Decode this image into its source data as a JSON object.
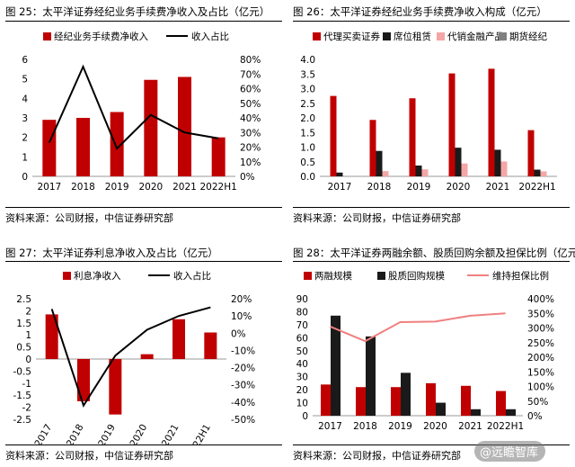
{
  "panels": [
    {
      "title": "图 25：太平洋证券经纪业务手续费净收入及占比（亿元）",
      "source": "资料来源：公司财报，中信证券研究部",
      "chart_data": {
        "type": "bar",
        "categories": [
          "2017",
          "2018",
          "2019",
          "2020",
          "2021",
          "2022H1"
        ],
        "series": [
          {
            "name": "经纪业务手续费净收入",
            "kind": "bar",
            "axis": "left",
            "values": [
              2.9,
              3.0,
              3.3,
              4.95,
              5.1,
              2.0
            ]
          },
          {
            "name": "收入占比",
            "kind": "line",
            "axis": "right",
            "values": [
              23,
              75,
              19,
              42,
              30,
              26
            ]
          }
        ],
        "ylim": [
          0,
          6
        ],
        "yticks": [
          "0",
          "1",
          "2",
          "3",
          "4",
          "5",
          "6"
        ],
        "y2lim": [
          0,
          80
        ],
        "y2ticks": [
          "0%",
          "10%",
          "20%",
          "30%",
          "40%",
          "50%",
          "60%",
          "70%",
          "80%"
        ]
      }
    },
    {
      "title": "图 26：太平洋证券经纪业务手续费净收入构成（亿元）",
      "source": "资料来源：公司财报，中信证券研究部",
      "chart_data": {
        "type": "bar",
        "categories": [
          "2017",
          "2018",
          "2019",
          "2020",
          "2021",
          "2022H1"
        ],
        "series": [
          {
            "name": "代理买卖证券",
            "kind": "bar",
            "values": [
              2.75,
              1.93,
              2.67,
              3.52,
              3.68,
              1.58
            ]
          },
          {
            "name": "席位租赁",
            "kind": "bar",
            "values": [
              0.13,
              0.87,
              0.37,
              0.98,
              0.91,
              0.23
            ]
          },
          {
            "name": "代销金融产品",
            "kind": "bar",
            "values": [
              0.0,
              0.18,
              0.24,
              0.44,
              0.51,
              0.17
            ]
          },
          {
            "name": "期货经纪",
            "kind": "bar",
            "values": [
              0.0,
              0.0,
              0.0,
              0.0,
              0.0,
              0.0
            ]
          }
        ],
        "ylim": [
          0,
          4
        ],
        "yticks": [
          "0.0",
          "0.5",
          "1.0",
          "1.5",
          "2.0",
          "2.5",
          "3.0",
          "3.5",
          "4.0"
        ]
      }
    },
    {
      "title": "图 27：太平洋证券利息净收入及占比（亿元）",
      "source": "资料来源：公司财报，中信证券研究部",
      "chart_data": {
        "type": "bar",
        "categories": [
          "2017",
          "2018",
          "2019",
          "2020",
          "2021",
          "2022H1"
        ],
        "series": [
          {
            "name": "利息净收入",
            "kind": "bar",
            "axis": "left",
            "values": [
              1.85,
              -1.75,
              -2.3,
              0.2,
              1.65,
              1.1
            ]
          },
          {
            "name": "收入占比",
            "kind": "line",
            "axis": "right",
            "values": [
              14,
              -42,
              -13,
              2,
              10,
              15
            ]
          }
        ],
        "ylim": [
          -2.5,
          2.5
        ],
        "yticks": [
          "-2.5",
          "-2",
          "-1.5",
          "-1",
          "-0.5",
          "0",
          "0.5",
          "1",
          "1.5",
          "2",
          "2.5"
        ],
        "y2lim": [
          -50,
          20
        ],
        "y2ticks": [
          "-50%",
          "-40%",
          "-30%",
          "-20%",
          "-10%",
          "0%",
          "10%",
          "20%"
        ]
      }
    },
    {
      "title": "图 28：太平洋证券两融余额、股质回购余额及担保比例（亿元）",
      "source": "资料来源：公司财报，中信证券研究部",
      "chart_data": {
        "type": "bar",
        "categories": [
          "2017",
          "2018",
          "2019",
          "2020",
          "2021",
          "2022H1"
        ],
        "series": [
          {
            "name": "两融规模",
            "kind": "bar",
            "axis": "left",
            "values": [
              24,
              22,
              22,
              25,
              23,
              19
            ]
          },
          {
            "name": "股质回购规模",
            "kind": "bar",
            "axis": "left",
            "values": [
              77,
              61,
              33,
              10,
              5,
              5
            ]
          },
          {
            "name": "维持担保比例",
            "kind": "line",
            "axis": "right",
            "values": [
              305,
              255,
              320,
              322,
              342,
              350
            ]
          }
        ],
        "ylim": [
          0,
          90
        ],
        "yticks": [
          "0",
          "10",
          "20",
          "30",
          "40",
          "50",
          "60",
          "70",
          "80",
          "90"
        ],
        "y2lim": [
          0,
          400
        ],
        "y2ticks": [
          "0%",
          "50%",
          "100%",
          "150%",
          "200%",
          "250%",
          "300%",
          "350%",
          "400%"
        ]
      }
    }
  ],
  "watermark": "@远瞻智库",
  "colors": {
    "red": "#c00000",
    "dark": "#1a1a1a",
    "pink": "#f4a6a6",
    "gray": "#808080",
    "line_black": "#000000",
    "line_pink": "#f08080"
  }
}
